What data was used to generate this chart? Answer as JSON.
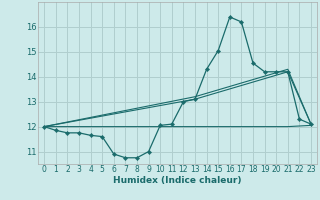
{
  "xlabel": "Humidex (Indice chaleur)",
  "bg_color": "#cdeaea",
  "line_color": "#1a6b6b",
  "grid_color": "#b0cece",
  "xlim": [
    -0.5,
    23.5
  ],
  "ylim": [
    10.5,
    17.0
  ],
  "xticks": [
    0,
    1,
    2,
    3,
    4,
    5,
    6,
    7,
    8,
    9,
    10,
    11,
    12,
    13,
    14,
    15,
    16,
    17,
    18,
    19,
    20,
    21,
    22,
    23
  ],
  "yticks": [
    11,
    12,
    13,
    14,
    15,
    16
  ],
  "curve_x": [
    0,
    1,
    2,
    3,
    4,
    5,
    6,
    7,
    8,
    9,
    10,
    11,
    12,
    13,
    14,
    15,
    16,
    17,
    18,
    19,
    20,
    21,
    22,
    23
  ],
  "curve_y": [
    12.0,
    11.85,
    11.75,
    11.75,
    11.65,
    11.6,
    10.9,
    10.75,
    10.75,
    11.0,
    12.05,
    12.1,
    13.0,
    13.1,
    14.3,
    15.05,
    16.4,
    16.2,
    14.55,
    14.2,
    14.2,
    14.2,
    12.3,
    12.1
  ],
  "line2_x": [
    0,
    13,
    21,
    23
  ],
  "line2_y": [
    12.0,
    13.1,
    14.2,
    12.1
  ],
  "line3_x": [
    0,
    13,
    21,
    23
  ],
  "line3_y": [
    12.0,
    13.2,
    14.3,
    12.1
  ],
  "line4_x": [
    0,
    21,
    23
  ],
  "line4_y": [
    12.0,
    12.0,
    12.05
  ],
  "tick_fontsize": 5.5,
  "xlabel_fontsize": 6.5
}
